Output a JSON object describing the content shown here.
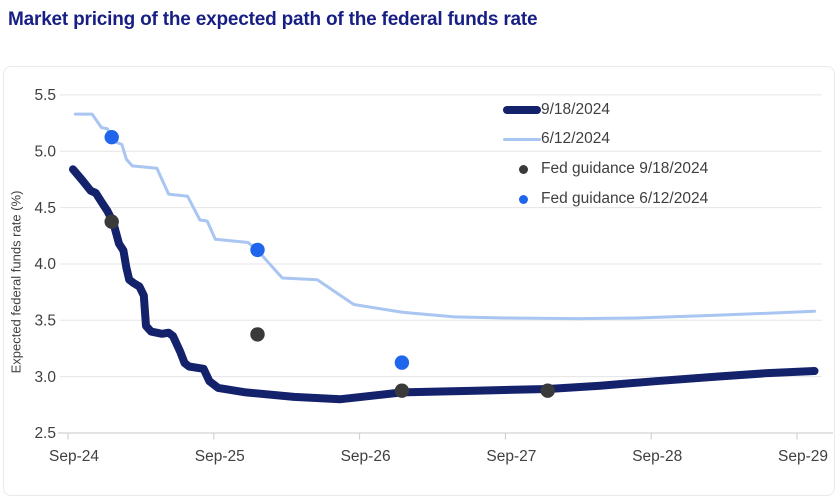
{
  "title": "Market pricing of the expected path of the federal funds rate",
  "chart_data": {
    "type": "line",
    "title": "Market pricing of the expected path of the federal funds rate",
    "xlabel": "",
    "ylabel": "Expected federal funds rate (%)",
    "x_unit": "years after Sep-2024",
    "xlim": [
      -0.07,
      5.25
    ],
    "ylim": [
      2.5,
      5.5
    ],
    "grid": "horizontal",
    "legend_position": "top-right",
    "y_ticks": [
      {
        "v": 5.5,
        "label": "5.5"
      },
      {
        "v": 5.0,
        "label": "5.0"
      },
      {
        "v": 4.5,
        "label": "4.5"
      },
      {
        "v": 4.0,
        "label": "4.0"
      },
      {
        "v": 3.5,
        "label": "3.5"
      },
      {
        "v": 3.0,
        "label": "3.0"
      },
      {
        "v": 2.5,
        "label": "2.5"
      }
    ],
    "x_ticks": [
      {
        "t": 0,
        "label": "Sep-24"
      },
      {
        "t": 1,
        "label": "Sep-25"
      },
      {
        "t": 2,
        "label": "Sep-26"
      },
      {
        "t": 3,
        "label": "Sep-27"
      },
      {
        "t": 4,
        "label": "Sep-28"
      },
      {
        "t": 5,
        "label": "Sep-29"
      }
    ],
    "series": [
      {
        "name": "9/18/2024",
        "kind": "line",
        "color": "#14216b",
        "stroke_width": 8,
        "points": [
          [
            0.034,
            4.84
          ],
          [
            0.1,
            4.74
          ],
          [
            0.155,
            4.65
          ],
          [
            0.19,
            4.63
          ],
          [
            0.23,
            4.55
          ],
          [
            0.27,
            4.47
          ],
          [
            0.31,
            4.37
          ],
          [
            0.35,
            4.18
          ],
          [
            0.38,
            4.12
          ],
          [
            0.4,
            3.97
          ],
          [
            0.42,
            3.86
          ],
          [
            0.45,
            3.83
          ],
          [
            0.49,
            3.8
          ],
          [
            0.52,
            3.72
          ],
          [
            0.535,
            3.45
          ],
          [
            0.57,
            3.4
          ],
          [
            0.645,
            3.38
          ],
          [
            0.69,
            3.39
          ],
          [
            0.72,
            3.36
          ],
          [
            0.77,
            3.22
          ],
          [
            0.8,
            3.12
          ],
          [
            0.83,
            3.09
          ],
          [
            0.93,
            3.07
          ],
          [
            0.97,
            2.96
          ],
          [
            1.03,
            2.9
          ],
          [
            1.22,
            2.86
          ],
          [
            1.55,
            2.82
          ],
          [
            1.87,
            2.8
          ],
          [
            2.29,
            2.86
          ],
          [
            2.79,
            2.875
          ],
          [
            3.29,
            2.89
          ],
          [
            3.65,
            2.92
          ],
          [
            4.03,
            2.96
          ],
          [
            4.45,
            3.0
          ],
          [
            4.78,
            3.03
          ],
          [
            5.12,
            3.05
          ]
        ]
      },
      {
        "name": "6/12/2024",
        "kind": "line",
        "color": "#a9c5f1",
        "stroke_width": 3,
        "points": [
          [
            0.05,
            5.33
          ],
          [
            0.165,
            5.33
          ],
          [
            0.23,
            5.21
          ],
          [
            0.27,
            5.2
          ],
          [
            0.3,
            5.12
          ],
          [
            0.33,
            5.08
          ],
          [
            0.37,
            5.06
          ],
          [
            0.4,
            4.93
          ],
          [
            0.44,
            4.87
          ],
          [
            0.61,
            4.85
          ],
          [
            0.69,
            4.62
          ],
          [
            0.82,
            4.6
          ],
          [
            0.905,
            4.39
          ],
          [
            0.955,
            4.38
          ],
          [
            1.01,
            4.22
          ],
          [
            1.235,
            4.19
          ],
          [
            1.3,
            4.12
          ],
          [
            1.47,
            3.875
          ],
          [
            1.71,
            3.86
          ],
          [
            1.96,
            3.64
          ],
          [
            2.3,
            3.57
          ],
          [
            2.65,
            3.53
          ],
          [
            3.0,
            3.52
          ],
          [
            3.5,
            3.515
          ],
          [
            3.9,
            3.52
          ],
          [
            4.35,
            3.54
          ],
          [
            4.75,
            3.56
          ],
          [
            5.12,
            3.58
          ]
        ]
      },
      {
        "name": "Fed guidance 9/18/2024",
        "kind": "scatter",
        "color": "#3a3a3a",
        "radius": 7.2,
        "points": [
          [
            0.3,
            4.375
          ],
          [
            1.3,
            3.375
          ],
          [
            2.29,
            2.875
          ],
          [
            3.29,
            2.875
          ]
        ]
      },
      {
        "name": "Fed guidance 6/12/2024",
        "kind": "scatter",
        "color": "#2066ec",
        "radius": 7.2,
        "points": [
          [
            0.3,
            5.125
          ],
          [
            1.3,
            4.125
          ],
          [
            2.29,
            3.125
          ]
        ]
      }
    ]
  },
  "colors": {
    "title": "#171f85",
    "axis_text": "#404040",
    "gridline": "#e5e5e5",
    "baseline": "#d2d2d2",
    "tick_mark": "#c9c9c9",
    "card_border": "#eaeaea"
  }
}
